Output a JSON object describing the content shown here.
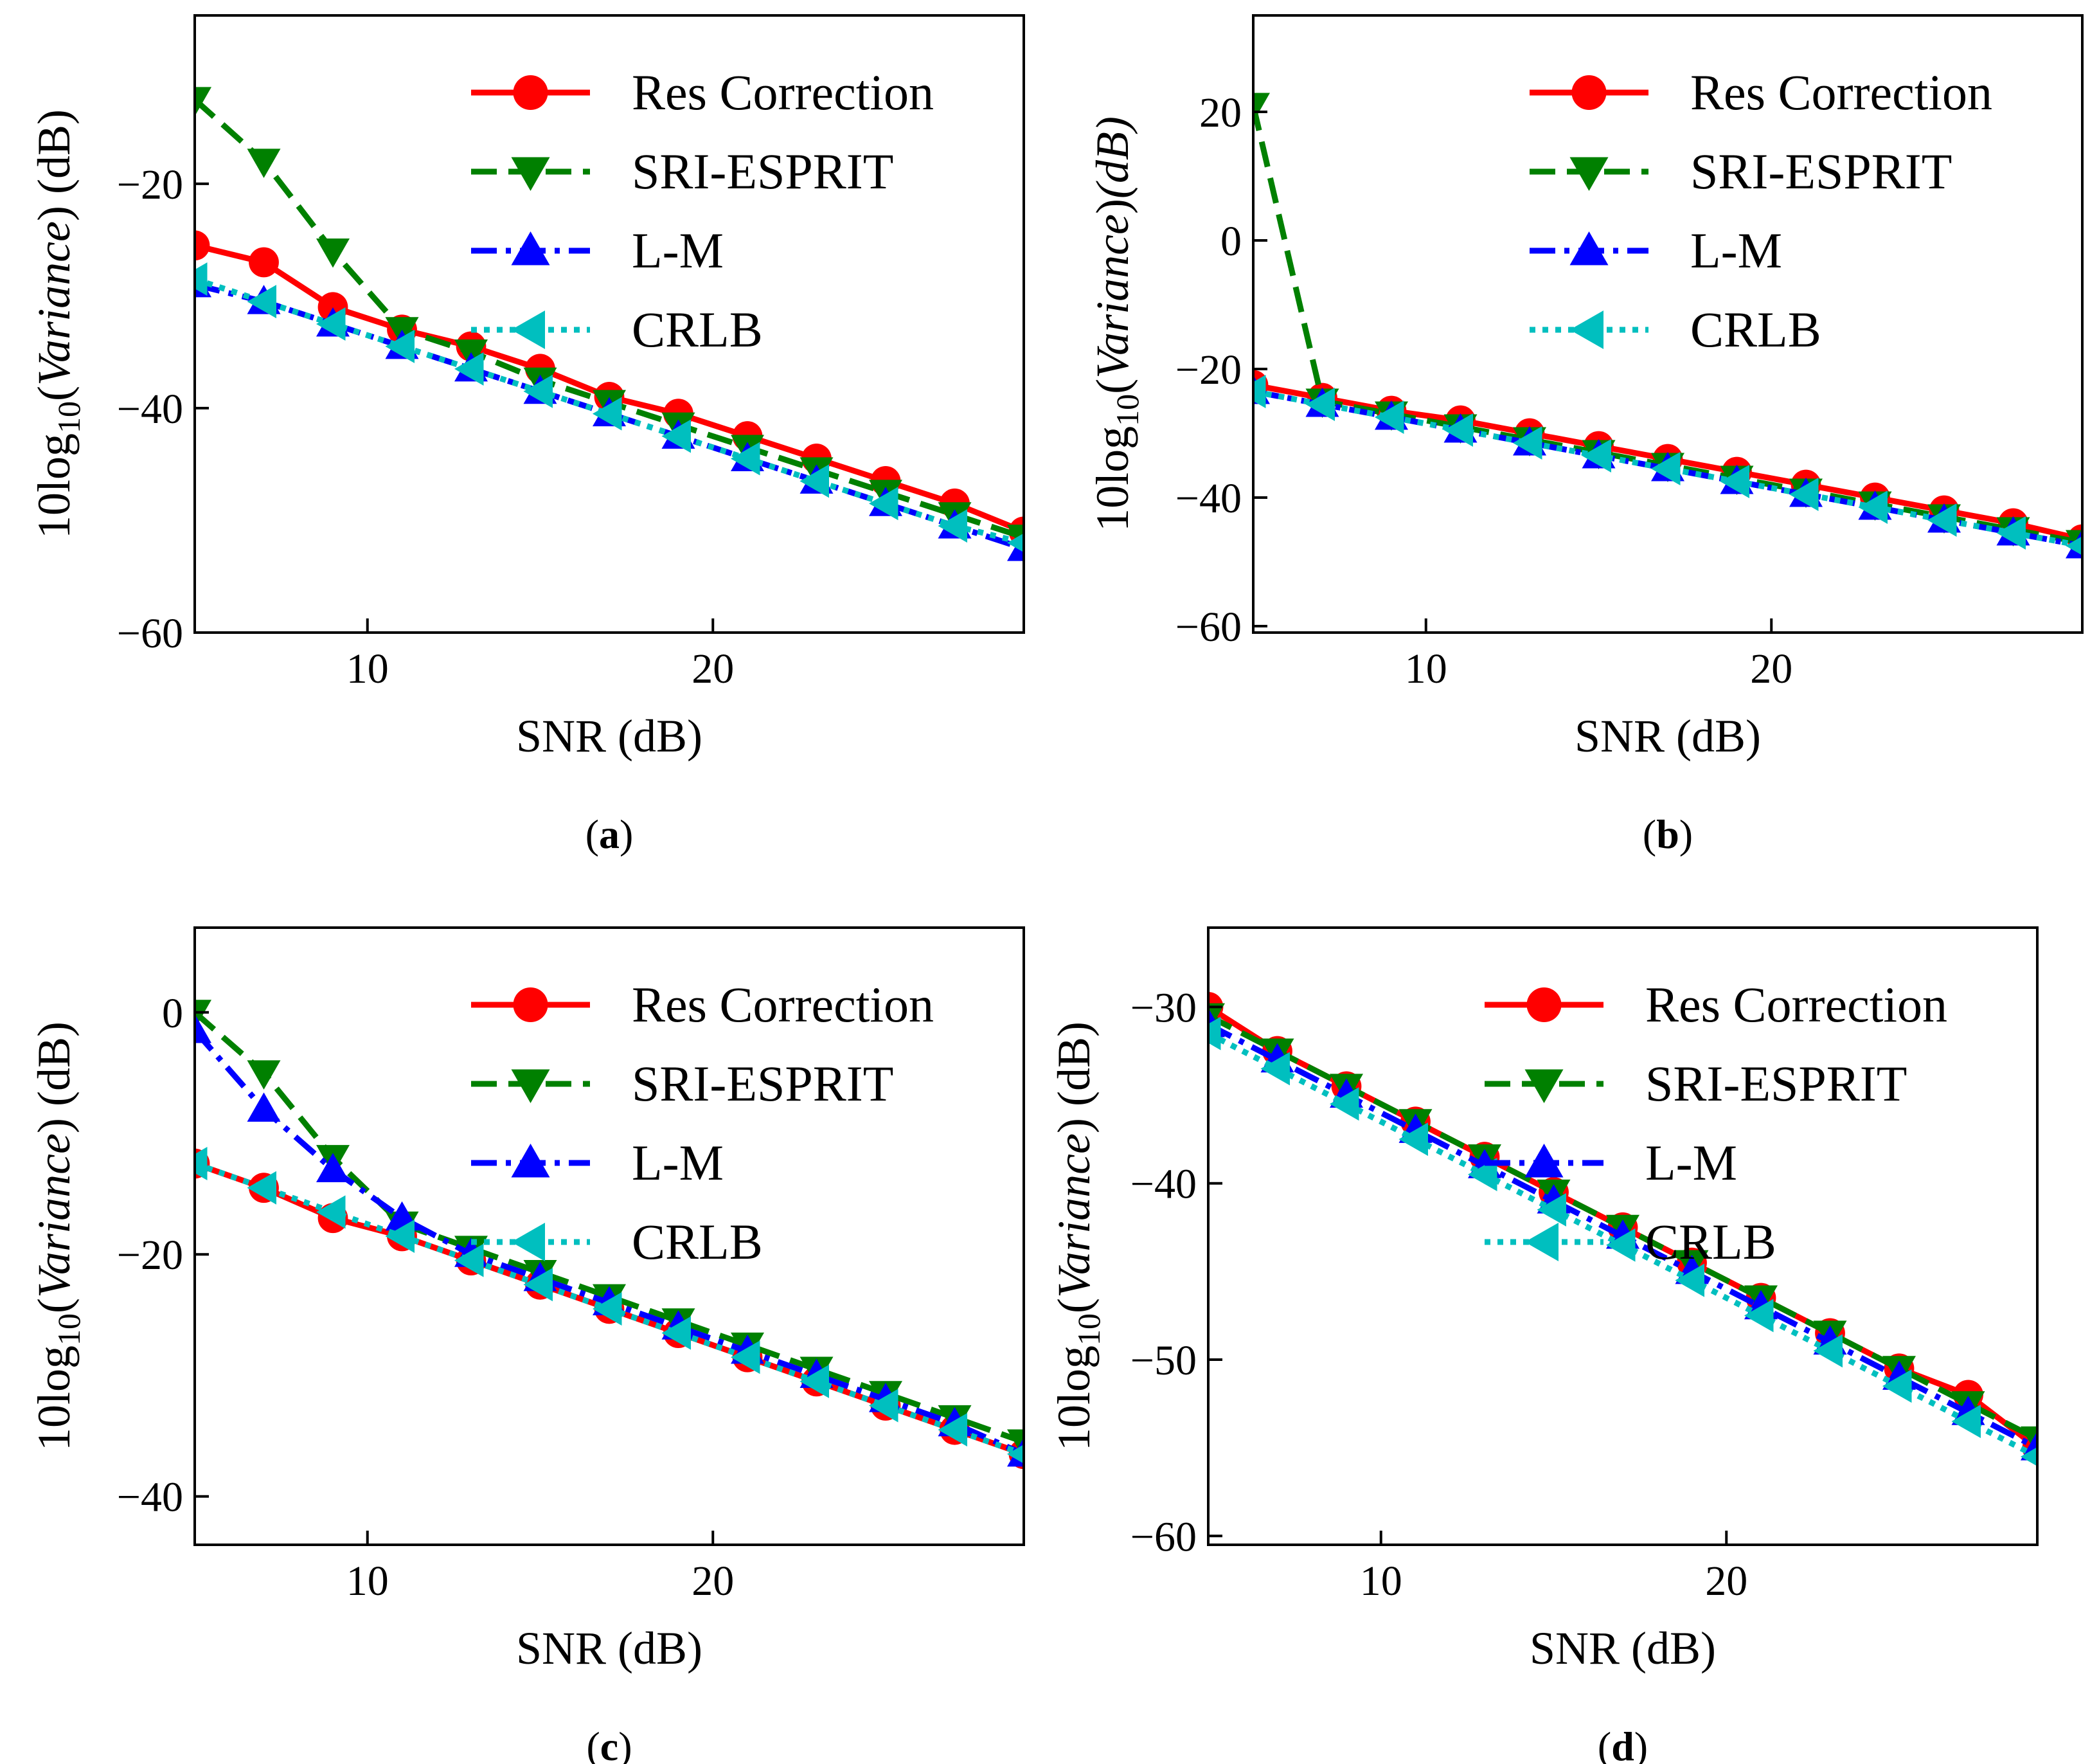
{
  "chart_data": [
    {
      "type": "line",
      "caption": "(a)",
      "caption_letter": "a",
      "xlabel": "SNR (dB)",
      "ylabel": {
        "prefix": "10log",
        "sub": "10",
        "open": "(",
        "italic": "Variance",
        "close": ")",
        "suffix": " (dB)"
      },
      "xlim": [
        5,
        29
      ],
      "ylim": [
        -60,
        -5
      ],
      "xticks": [
        10,
        20
      ],
      "yticks": [
        -60,
        -40,
        -20
      ],
      "x": [
        5,
        7,
        9,
        11,
        13,
        15,
        17,
        19,
        21,
        23,
        25,
        27,
        29
      ],
      "series": [
        {
          "name": "Res Correction",
          "color": "#ff0000",
          "marker": "circle",
          "dash": "solid",
          "values": [
            -25.5,
            -27,
            -31,
            -33,
            -34.5,
            -36.5,
            -39,
            -40.5,
            -42.5,
            -44.5,
            -46.5,
            -48.5,
            -51
          ]
        },
        {
          "name": "SRI-ESPRIT",
          "color": "#008000",
          "marker": "triangle-down",
          "dash": "dashed",
          "values": [
            -12.5,
            -18,
            -26,
            -33,
            -35,
            -37.5,
            -39.5,
            -41.5,
            -43.5,
            -45.5,
            -47.5,
            -49.5,
            -51.5
          ]
        },
        {
          "name": "L-M",
          "color": "#0000ff",
          "marker": "triangle-up",
          "dash": "dashdot",
          "values": [
            -29,
            -30.5,
            -32.5,
            -34.5,
            -36.5,
            -38.5,
            -40.5,
            -42.5,
            -44.5,
            -46.5,
            -48.5,
            -50.5,
            -52.5
          ]
        },
        {
          "name": "CRLB",
          "color": "#00bfbf",
          "marker": "triangle-left",
          "dash": "dotted",
          "values": [
            -28.5,
            -30.5,
            -32.5,
            -34.5,
            -36.5,
            -38.5,
            -40.5,
            -42.5,
            -44.5,
            -46.5,
            -48.5,
            -50.5,
            -52
          ]
        }
      ]
    },
    {
      "type": "line",
      "caption": "(b)",
      "caption_letter": "b",
      "xlabel": "SNR (dB)",
      "ylabel": {
        "prefix": "10log",
        "sub": "10",
        "open": "(",
        "italic": "Variance",
        "close": ")",
        "suffix": "(dB)",
        "suffix_italic": true
      },
      "xlim": [
        5,
        29
      ],
      "ylim": [
        -61,
        35
      ],
      "xticks": [
        10,
        20
      ],
      "yticks": [
        -60,
        -40,
        -20,
        0,
        20
      ],
      "x": [
        5,
        7,
        9,
        11,
        13,
        15,
        17,
        19,
        21,
        23,
        25,
        27,
        29
      ],
      "series": [
        {
          "name": "Res Correction",
          "color": "#ff0000",
          "marker": "circle",
          "dash": "solid",
          "values": [
            -22.5,
            -24.5,
            -26.5,
            -28,
            -30,
            -32,
            -34,
            -36,
            -38,
            -40,
            -42,
            -44,
            -46.5
          ]
        },
        {
          "name": "SRI-ESPRIT",
          "color": "#008000",
          "marker": "triangle-down",
          "dash": "dashed",
          "values": [
            21,
            -25,
            -27,
            -29,
            -31,
            -33,
            -35,
            -37,
            -39,
            -41,
            -43,
            -45,
            -47
          ]
        },
        {
          "name": "L-M",
          "color": "#0000ff",
          "marker": "triangle-up",
          "dash": "dashdot",
          "values": [
            -23.5,
            -25.5,
            -27.5,
            -29.5,
            -31.5,
            -33.5,
            -35.5,
            -37.5,
            -39.5,
            -41.5,
            -43.5,
            -45.5,
            -47.5
          ]
        },
        {
          "name": "CRLB",
          "color": "#00bfbf",
          "marker": "triangle-left",
          "dash": "dotted",
          "values": [
            -23.5,
            -25.5,
            -27.5,
            -29.5,
            -31.5,
            -33.5,
            -35.5,
            -37.5,
            -39.5,
            -41.5,
            -43.5,
            -45.5,
            -47.5
          ]
        }
      ]
    },
    {
      "type": "line",
      "caption": "(c)",
      "caption_letter": "c",
      "xlabel": "SNR (dB)",
      "ylabel": {
        "prefix": "10log",
        "sub": "10",
        "open": "(",
        "italic": "Variance",
        "close": ")",
        "suffix": " (dB)"
      },
      "xlim": [
        5,
        29
      ],
      "ylim": [
        -44,
        7
      ],
      "xticks": [
        10,
        20
      ],
      "yticks": [
        -40,
        -20,
        0
      ],
      "x": [
        5,
        7,
        9,
        11,
        13,
        15,
        17,
        19,
        21,
        23,
        25,
        27,
        29
      ],
      "series": [
        {
          "name": "Res Correction",
          "color": "#ff0000",
          "marker": "circle",
          "dash": "solid",
          "values": [
            -12.5,
            -14.5,
            -17,
            -18.5,
            -20.5,
            -22.5,
            -24.5,
            -26.5,
            -28.5,
            -30.5,
            -32.5,
            -34.5,
            -36.5
          ]
        },
        {
          "name": "SRI-ESPRIT",
          "color": "#008000",
          "marker": "triangle-down",
          "dash": "dashed",
          "values": [
            0,
            -5,
            -12,
            -17.5,
            -19.5,
            -21.5,
            -23.5,
            -25.5,
            -27.5,
            -29.5,
            -31.5,
            -33.5,
            -35.5
          ]
        },
        {
          "name": "L-M",
          "color": "#0000ff",
          "marker": "triangle-up",
          "dash": "dashdot",
          "values": [
            -1.5,
            -8,
            -13,
            -17,
            -20,
            -22,
            -24,
            -26,
            -28,
            -30,
            -32,
            -34,
            -36.5
          ]
        },
        {
          "name": "CRLB",
          "color": "#00bfbf",
          "marker": "triangle-left",
          "dash": "dotted",
          "values": [
            -12.5,
            -14.5,
            -16.5,
            -18.5,
            -20.5,
            -22.5,
            -24.5,
            -26.5,
            -28.5,
            -30.5,
            -32.5,
            -34.5,
            -36.5
          ]
        }
      ]
    },
    {
      "type": "line",
      "caption": "(d)",
      "caption_letter": "d",
      "xlabel": "SNR (dB)",
      "ylabel": {
        "prefix": "10log",
        "sub": "10",
        "open": "(",
        "italic": "Variance",
        "close": ")",
        "suffix": " (dB)"
      },
      "xlim": [
        5,
        29
      ],
      "ylim": [
        -60.5,
        -25.5
      ],
      "xticks": [
        10,
        20
      ],
      "yticks": [
        -60,
        -50,
        -40,
        -30
      ],
      "x": [
        5,
        7,
        9,
        11,
        13,
        15,
        17,
        19,
        21,
        23,
        25,
        27,
        29
      ],
      "series": [
        {
          "name": "Res Correction",
          "color": "#ff0000",
          "marker": "circle",
          "dash": "solid",
          "values": [
            -30,
            -32.5,
            -34.5,
            -36.5,
            -38.5,
            -40.5,
            -42.5,
            -44.5,
            -46.5,
            -48.5,
            -50.5,
            -52,
            -55
          ]
        },
        {
          "name": "SRI-ESPRIT",
          "color": "#008000",
          "marker": "triangle-down",
          "dash": "dashed",
          "values": [
            -30.5,
            -32.5,
            -34.5,
            -36.5,
            -38.5,
            -40.5,
            -42.5,
            -44.5,
            -46.5,
            -48.5,
            -50.5,
            -52.5,
            -54.5
          ]
        },
        {
          "name": "L-M",
          "color": "#0000ff",
          "marker": "triangle-up",
          "dash": "dashdot",
          "values": [
            -31,
            -33,
            -35,
            -37,
            -39,
            -41,
            -43,
            -45,
            -47,
            -49,
            -51,
            -53,
            -55
          ]
        },
        {
          "name": "CRLB",
          "color": "#00bfbf",
          "marker": "triangle-left",
          "dash": "dotted",
          "values": [
            -31.5,
            -33.5,
            -35.5,
            -37.5,
            -39.5,
            -41.5,
            -43.5,
            -45.5,
            -47.5,
            -49.5,
            -51.5,
            -53.5,
            -55.5
          ]
        }
      ]
    }
  ]
}
